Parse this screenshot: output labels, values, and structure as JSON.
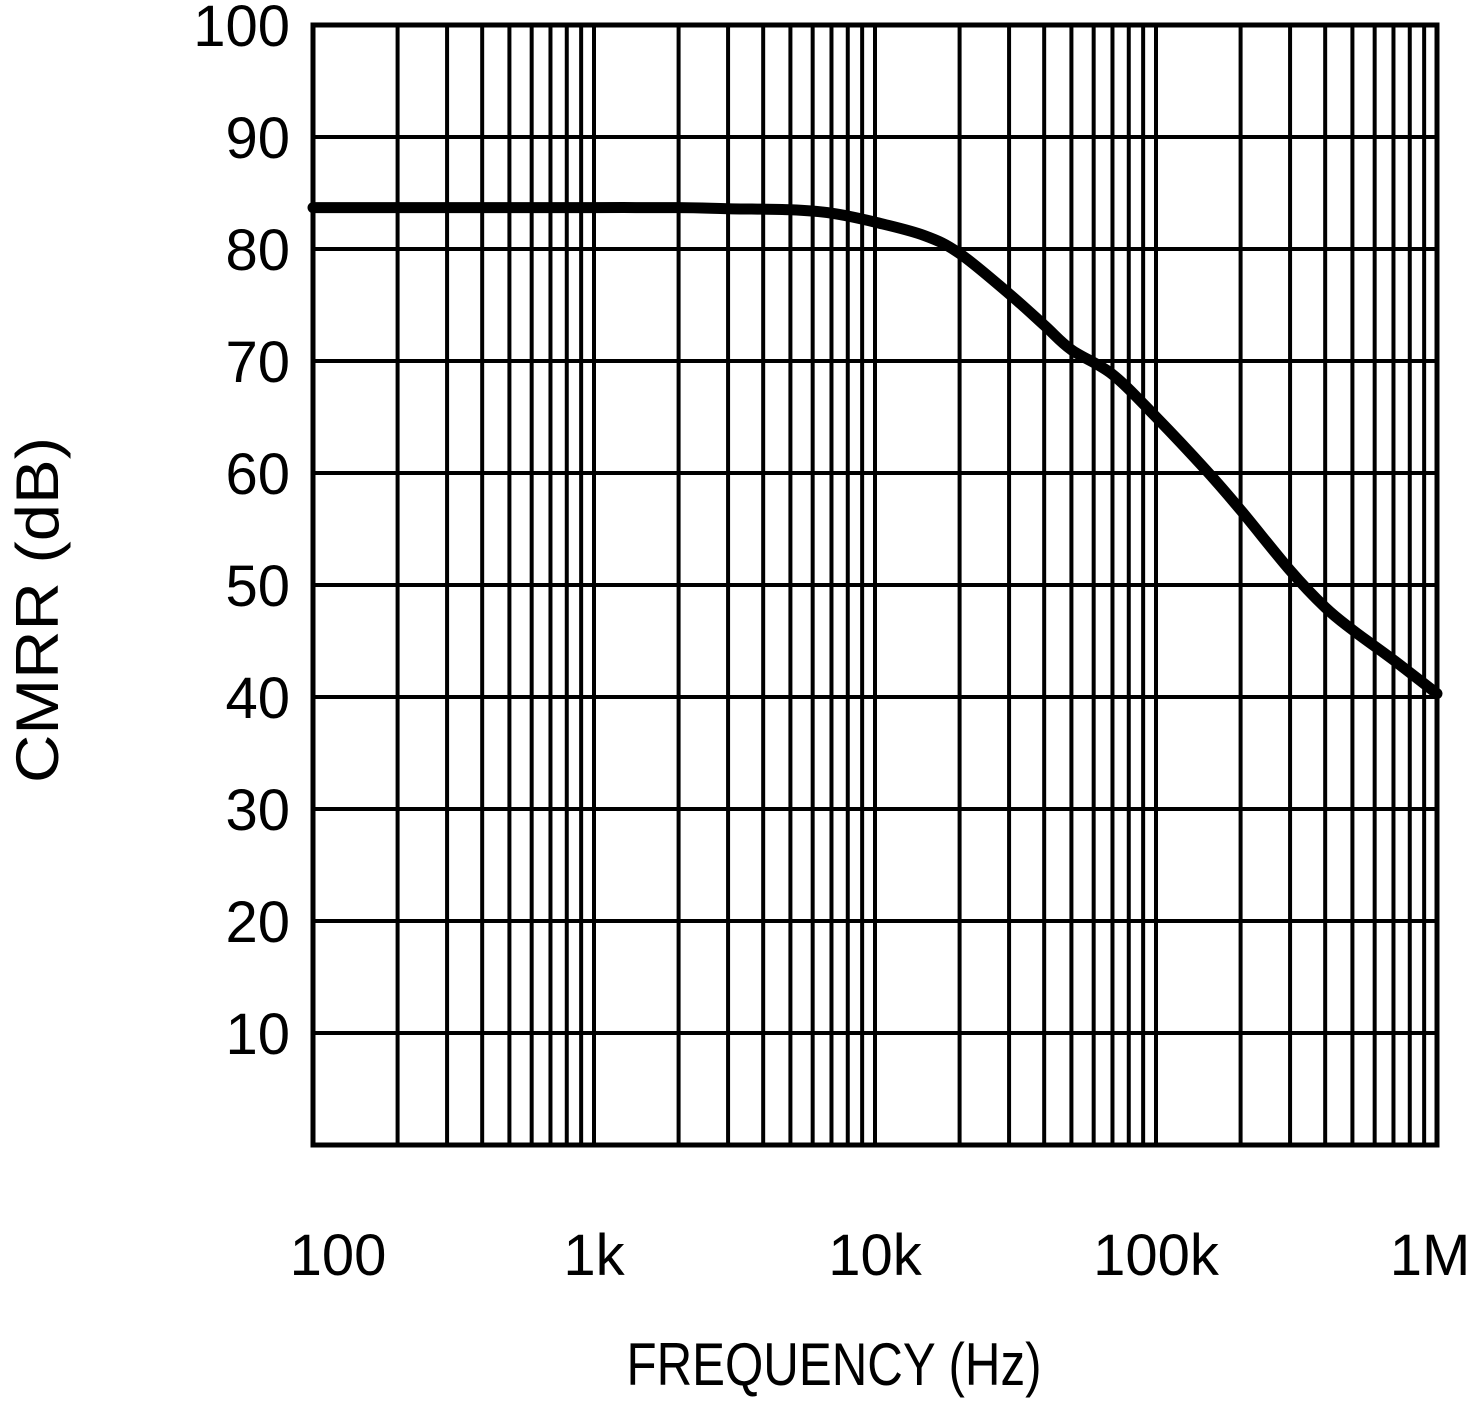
{
  "figure": {
    "background": "#ffffff",
    "line_color": "#000000",
    "grid_color": "#000000"
  },
  "chart_data": {
    "type": "line",
    "title": "",
    "xlabel": "FREQUENCY (Hz)",
    "ylabel": "CMRR (dB)",
    "x_scale": "log",
    "y_scale": "linear",
    "xlim": [
      100,
      1000000
    ],
    "ylim": [
      0,
      100
    ],
    "grid": "on",
    "legend": "none",
    "x_ticks": [
      {
        "value": 100,
        "label": "100"
      },
      {
        "value": 1000,
        "label": "1k"
      },
      {
        "value": 10000,
        "label": "10k"
      },
      {
        "value": 100000,
        "label": "100k"
      },
      {
        "value": 1000000,
        "label": "1M"
      }
    ],
    "y_ticks": [
      {
        "value": 10,
        "label": "10"
      },
      {
        "value": 20,
        "label": "20"
      },
      {
        "value": 30,
        "label": "30"
      },
      {
        "value": 40,
        "label": "40"
      },
      {
        "value": 50,
        "label": "50"
      },
      {
        "value": 60,
        "label": "60"
      },
      {
        "value": 70,
        "label": "70"
      },
      {
        "value": 80,
        "label": "80"
      },
      {
        "value": 90,
        "label": "90"
      },
      {
        "value": 100,
        "label": "100"
      }
    ],
    "series": [
      {
        "name": "CMRR",
        "points": [
          [
            100,
            83.7
          ],
          [
            200,
            83.7
          ],
          [
            500,
            83.7
          ],
          [
            1000,
            83.7
          ],
          [
            2000,
            83.7
          ],
          [
            3000,
            83.6
          ],
          [
            5000,
            83.5
          ],
          [
            7000,
            83.2
          ],
          [
            10000,
            82.4
          ],
          [
            15000,
            81.2
          ],
          [
            20000,
            79.6
          ],
          [
            30000,
            76.0
          ],
          [
            40000,
            73.2
          ],
          [
            50000,
            71.0
          ],
          [
            70000,
            68.8
          ],
          [
            100000,
            65.0
          ],
          [
            150000,
            60.3
          ],
          [
            200000,
            56.7
          ],
          [
            300000,
            51.3
          ],
          [
            400000,
            48.0
          ],
          [
            500000,
            46.0
          ],
          [
            700000,
            43.3
          ],
          [
            1000000,
            40.3
          ]
        ]
      }
    ]
  }
}
